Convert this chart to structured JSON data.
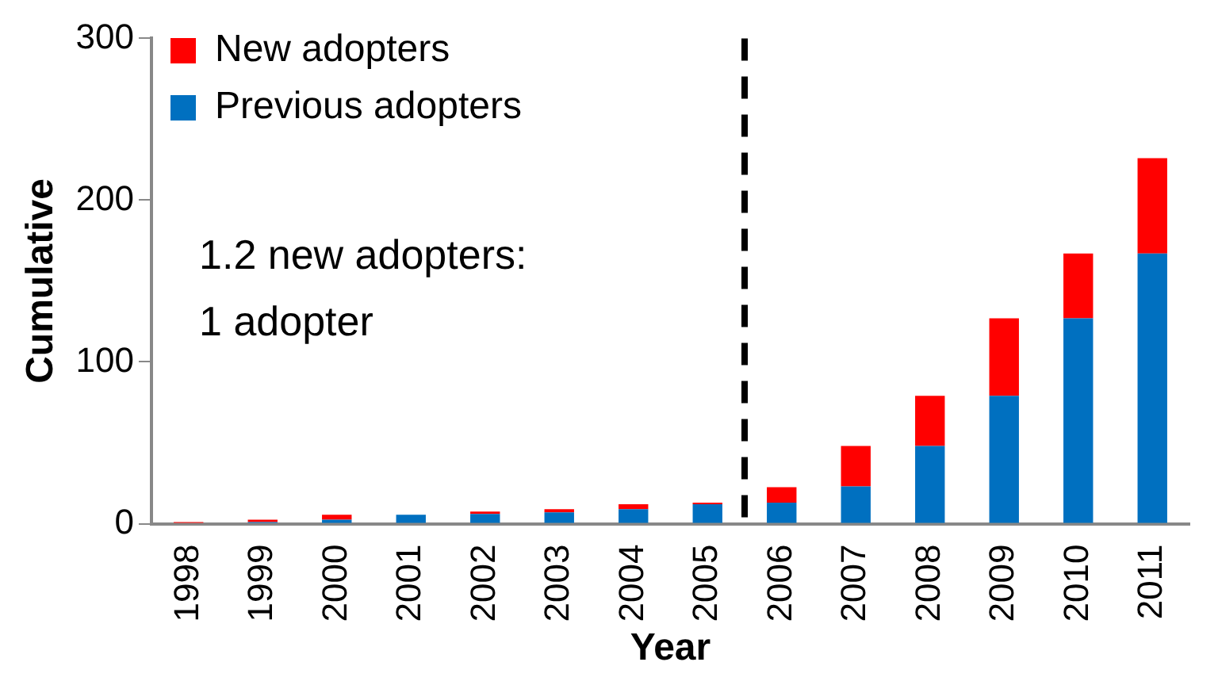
{
  "chart_data": {
    "type": "bar",
    "stacked": true,
    "xlabel": "Year",
    "ylabel": "Cumulative",
    "x": [
      1998,
      1999,
      2000,
      2001,
      2002,
      2003,
      2004,
      2005,
      2006,
      2007,
      2008,
      2009,
      2010,
      2011
    ],
    "xlim": [
      1997.5,
      2011.5
    ],
    "xticks": [
      1998,
      1999,
      2000,
      2001,
      2002,
      2003,
      2004,
      2005,
      2006,
      2007,
      2008,
      2009,
      2010,
      2011
    ],
    "ylim": [
      0,
      300
    ],
    "yticks": [
      0,
      100,
      200,
      300
    ],
    "grid": false,
    "legend": "top left",
    "series": [
      {
        "name": "Previous adopters",
        "color": "#0070c0",
        "values": [
          0,
          1,
          2.5,
          5.5,
          6,
          7,
          9,
          12,
          13,
          23,
          48,
          79,
          127,
          167
        ]
      },
      {
        "name": "New adopters",
        "color": "#ff0000",
        "values": [
          1,
          1.5,
          3,
          0,
          1.5,
          2,
          3,
          1,
          9.5,
          25,
          31,
          48,
          40,
          59
        ]
      }
    ],
    "ref_lines": [
      {
        "axis": "x",
        "value": 2005.5,
        "color": "#000000",
        "line_style": "dashed"
      }
    ],
    "annotations": [
      "1.2 new adopters:\n1 adopter"
    ]
  }
}
